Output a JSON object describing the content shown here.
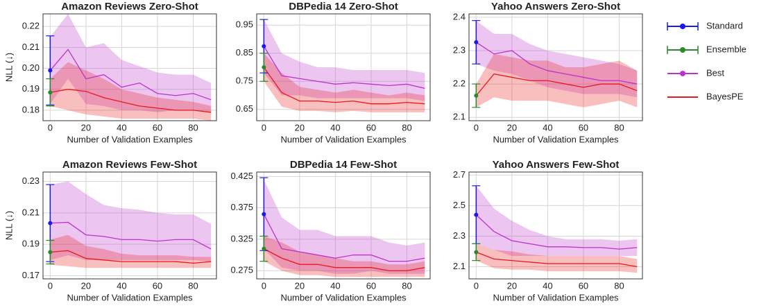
{
  "chart_data": [
    {
      "type": "line",
      "title": "Amazon Reviews Zero-Shot",
      "x_label": "Number of Validation Examples",
      "y_label": "NLL (↓)",
      "x": [
        0,
        10,
        20,
        30,
        40,
        50,
        60,
        70,
        80,
        90
      ],
      "xlim": [
        -4,
        93
      ],
      "xticks": [
        0,
        20,
        40,
        60,
        80
      ],
      "ylim": [
        0.175,
        0.226
      ],
      "yticks": [
        0.18,
        0.19,
        {
          "value": 0.2,
          "label": "0.20"
        },
        0.21,
        0.22
      ],
      "grid": true,
      "legend": "right",
      "series": [
        {
          "name": "Standard",
          "color": "#1a1aee",
          "x": [
            0
          ],
          "values": [
            0.199
          ],
          "error": [
            0.0165
          ]
        },
        {
          "name": "Ensemble",
          "color": "#2a8a2a",
          "x": [
            0
          ],
          "values": [
            0.1885
          ],
          "error": [
            0.0065
          ]
        },
        {
          "name": "Best",
          "color": "#bb33cc",
          "values": [
            0.199,
            0.209,
            0.195,
            0.197,
            0.191,
            0.193,
            0.188,
            0.187,
            0.188,
            0.185
          ],
          "lower": [
            0.183,
            0.195,
            0.183,
            0.182,
            0.18,
            0.18,
            0.179,
            0.18,
            0.18,
            0.179
          ],
          "upper": [
            0.215,
            0.226,
            0.21,
            0.212,
            0.204,
            0.201,
            0.198,
            0.197,
            0.197,
            0.193
          ]
        },
        {
          "name": "BayesPE",
          "color": "#e8191a",
          "values": [
            0.1885,
            0.19,
            0.189,
            0.186,
            0.184,
            0.182,
            0.181,
            0.18,
            0.18,
            0.179
          ],
          "lower": [
            0.182,
            0.18,
            0.178,
            0.177,
            0.176,
            0.176,
            0.176,
            0.176,
            0.176,
            0.175
          ],
          "upper": [
            0.195,
            0.203,
            0.199,
            0.195,
            0.19,
            0.188,
            0.186,
            0.185,
            0.184,
            0.182
          ]
        }
      ]
    },
    {
      "type": "line",
      "title": "DBPedia 14 Zero-Shot",
      "x_label": "Number of Validation Examples",
      "x": [
        0,
        10,
        20,
        30,
        40,
        50,
        60,
        70,
        80,
        90
      ],
      "xlim": [
        -4,
        93
      ],
      "xticks": [
        0,
        20,
        40,
        60,
        80
      ],
      "ylim": [
        0.61,
        0.99
      ],
      "yticks": [
        0.65,
        0.75,
        0.85,
        0.95
      ],
      "grid": true,
      "series": [
        {
          "name": "Standard",
          "color": "#1a1aee",
          "x": [
            0
          ],
          "values": [
            0.875
          ],
          "error": [
            0.095
          ]
        },
        {
          "name": "Ensemble",
          "color": "#2a8a2a",
          "x": [
            0
          ],
          "values": [
            0.8
          ],
          "error": [
            0.05
          ]
        },
        {
          "name": "Best",
          "color": "#bb33cc",
          "values": [
            0.875,
            0.77,
            0.76,
            0.75,
            0.74,
            0.745,
            0.74,
            0.735,
            0.74,
            0.725
          ],
          "lower": [
            0.78,
            0.7,
            0.7,
            0.69,
            0.69,
            0.69,
            0.69,
            0.69,
            0.69,
            0.68
          ],
          "upper": [
            0.97,
            0.85,
            0.82,
            0.8,
            0.8,
            0.79,
            0.79,
            0.79,
            0.79,
            0.78
          ]
        },
        {
          "name": "BayesPE",
          "color": "#e8191a",
          "values": [
            0.8,
            0.71,
            0.68,
            0.68,
            0.675,
            0.68,
            0.67,
            0.67,
            0.675,
            0.67
          ],
          "lower": [
            0.75,
            0.66,
            0.645,
            0.645,
            0.64,
            0.645,
            0.64,
            0.64,
            0.64,
            0.64
          ],
          "upper": [
            0.85,
            0.78,
            0.73,
            0.72,
            0.71,
            0.72,
            0.71,
            0.7,
            0.71,
            0.7
          ]
        }
      ]
    },
    {
      "type": "line",
      "title": "Yahoo Answers Zero-Shot",
      "x_label": "Number of Validation Examples",
      "x": [
        0,
        10,
        20,
        30,
        40,
        50,
        60,
        70,
        80,
        90
      ],
      "xlim": [
        -4,
        93
      ],
      "xticks": [
        0,
        20,
        40,
        60,
        80
      ],
      "ylim": [
        2.09,
        2.41
      ],
      "yticks": [
        2.1,
        2.2,
        2.3,
        2.4
      ],
      "grid": true,
      "series": [
        {
          "name": "Standard",
          "color": "#1a1aee",
          "x": [
            0
          ],
          "values": [
            2.325
          ],
          "error": [
            0.065
          ]
        },
        {
          "name": "Ensemble",
          "color": "#2a8a2a",
          "x": [
            0
          ],
          "values": [
            2.165
          ],
          "error": [
            0.035
          ]
        },
        {
          "name": "Best",
          "color": "#bb33cc",
          "values": [
            2.325,
            2.29,
            2.3,
            2.26,
            2.24,
            2.23,
            2.22,
            2.21,
            2.21,
            2.2
          ],
          "lower": [
            2.26,
            2.24,
            2.23,
            2.21,
            2.19,
            2.18,
            2.17,
            2.17,
            2.17,
            2.16
          ],
          "upper": [
            2.39,
            2.35,
            2.35,
            2.32,
            2.3,
            2.29,
            2.28,
            2.27,
            2.26,
            2.24
          ]
        },
        {
          "name": "BayesPE",
          "color": "#e8191a",
          "values": [
            2.165,
            2.23,
            2.22,
            2.21,
            2.21,
            2.2,
            2.19,
            2.2,
            2.2,
            2.18
          ],
          "lower": [
            2.13,
            2.16,
            2.15,
            2.15,
            2.15,
            2.14,
            2.13,
            2.14,
            2.15,
            2.13
          ],
          "upper": [
            2.2,
            2.29,
            2.28,
            2.27,
            2.27,
            2.25,
            2.25,
            2.26,
            2.27,
            2.24
          ]
        }
      ]
    },
    {
      "type": "line",
      "title": "Amazon Reviews Few-Shot",
      "x_label": "Number of Validation Examples",
      "y_label": "NLL (↓)",
      "x": [
        0,
        10,
        20,
        30,
        40,
        50,
        60,
        70,
        80,
        90
      ],
      "xlim": [
        -4,
        93
      ],
      "xticks": [
        0,
        20,
        40,
        60,
        80
      ],
      "ylim": [
        0.168,
        0.236
      ],
      "yticks": [
        0.17,
        0.19,
        0.21,
        0.23
      ],
      "grid": true,
      "series": [
        {
          "name": "Standard",
          "color": "#1a1aee",
          "x": [
            0
          ],
          "values": [
            0.2035
          ],
          "error": [
            0.0245
          ]
        },
        {
          "name": "Ensemble",
          "color": "#2a8a2a",
          "x": [
            0
          ],
          "values": [
            0.185
          ],
          "error": [
            0.0075
          ]
        },
        {
          "name": "Best",
          "color": "#bb33cc",
          "values": [
            0.2035,
            0.204,
            0.196,
            0.195,
            0.193,
            0.193,
            0.192,
            0.193,
            0.193,
            0.187
          ],
          "lower": [
            0.18,
            0.183,
            0.18,
            0.18,
            0.18,
            0.18,
            0.18,
            0.18,
            0.18,
            0.179
          ],
          "upper": [
            0.228,
            0.23,
            0.222,
            0.215,
            0.213,
            0.212,
            0.21,
            0.209,
            0.209,
            0.203
          ]
        },
        {
          "name": "BayesPE",
          "color": "#e8191a",
          "values": [
            0.185,
            0.186,
            0.181,
            0.18,
            0.179,
            0.179,
            0.179,
            0.179,
            0.178,
            0.179
          ],
          "lower": [
            0.177,
            0.176,
            0.175,
            0.175,
            0.175,
            0.175,
            0.175,
            0.175,
            0.175,
            0.175
          ],
          "upper": [
            0.193,
            0.196,
            0.189,
            0.187,
            0.184,
            0.183,
            0.183,
            0.183,
            0.182,
            0.182
          ]
        }
      ]
    },
    {
      "type": "line",
      "title": "DBPedia 14 Few-Shot",
      "x_label": "Number of Validation Examples",
      "x": [
        0,
        10,
        20,
        30,
        40,
        50,
        60,
        70,
        80,
        90
      ],
      "xlim": [
        -4,
        93
      ],
      "xticks": [
        0,
        20,
        40,
        60,
        80
      ],
      "ylim": [
        0.262,
        0.432
      ],
      "yticks": [
        0.275,
        0.325,
        0.375,
        0.425
      ],
      "grid": true,
      "series": [
        {
          "name": "Standard",
          "color": "#1a1aee",
          "x": [
            0
          ],
          "values": [
            0.365
          ],
          "error": [
            0.058
          ]
        },
        {
          "name": "Ensemble",
          "color": "#2a8a2a",
          "x": [
            0
          ],
          "values": [
            0.31
          ],
          "error": [
            0.02
          ]
        },
        {
          "name": "Best",
          "color": "#bb33cc",
          "values": [
            0.365,
            0.31,
            0.305,
            0.3,
            0.295,
            0.3,
            0.3,
            0.29,
            0.29,
            0.295
          ],
          "lower": [
            0.31,
            0.28,
            0.275,
            0.275,
            0.27,
            0.27,
            0.275,
            0.27,
            0.27,
            0.27
          ],
          "upper": [
            0.42,
            0.36,
            0.34,
            0.34,
            0.33,
            0.33,
            0.33,
            0.32,
            0.315,
            0.32
          ]
        },
        {
          "name": "BayesPE",
          "color": "#e8191a",
          "values": [
            0.31,
            0.295,
            0.285,
            0.285,
            0.28,
            0.28,
            0.28,
            0.275,
            0.275,
            0.28
          ],
          "lower": [
            0.29,
            0.275,
            0.268,
            0.268,
            0.265,
            0.265,
            0.265,
            0.265,
            0.265,
            0.265
          ],
          "upper": [
            0.33,
            0.32,
            0.305,
            0.3,
            0.295,
            0.29,
            0.29,
            0.285,
            0.285,
            0.29
          ]
        }
      ]
    },
    {
      "type": "line",
      "title": "Yahoo Answers Few-Shot",
      "x_label": "Number of Validation Examples",
      "x": [
        0,
        10,
        20,
        30,
        40,
        50,
        60,
        70,
        80,
        90
      ],
      "xlim": [
        -4,
        93
      ],
      "xticks": [
        0,
        20,
        40,
        60,
        80
      ],
      "ylim": [
        2.02,
        2.72
      ],
      "yticks": [
        2.1,
        2.3,
        2.5,
        2.7
      ],
      "grid": true,
      "series": [
        {
          "name": "Standard",
          "color": "#1a1aee",
          "x": [
            0
          ],
          "values": [
            2.44
          ],
          "error": [
            0.19
          ]
        },
        {
          "name": "Ensemble",
          "color": "#2a8a2a",
          "x": [
            0
          ],
          "values": [
            2.195
          ],
          "error": [
            0.055
          ]
        },
        {
          "name": "Best",
          "color": "#bb33cc",
          "values": [
            2.44,
            2.33,
            2.27,
            2.25,
            2.23,
            2.23,
            2.225,
            2.225,
            2.215,
            2.225
          ],
          "lower": [
            2.25,
            2.21,
            2.17,
            2.17,
            2.17,
            2.17,
            2.17,
            2.17,
            2.17,
            2.17
          ],
          "upper": [
            2.63,
            2.48,
            2.4,
            2.34,
            2.3,
            2.28,
            2.28,
            2.28,
            2.27,
            2.28
          ]
        },
        {
          "name": "BayesPE",
          "color": "#e8191a",
          "values": [
            2.195,
            2.15,
            2.14,
            2.13,
            2.12,
            2.12,
            2.12,
            2.12,
            2.12,
            2.1
          ],
          "lower": [
            2.14,
            2.09,
            2.08,
            2.08,
            2.07,
            2.07,
            2.07,
            2.07,
            2.07,
            2.06
          ],
          "upper": [
            2.25,
            2.21,
            2.2,
            2.18,
            2.17,
            2.17,
            2.17,
            2.17,
            2.17,
            2.15
          ]
        }
      ]
    }
  ]
}
